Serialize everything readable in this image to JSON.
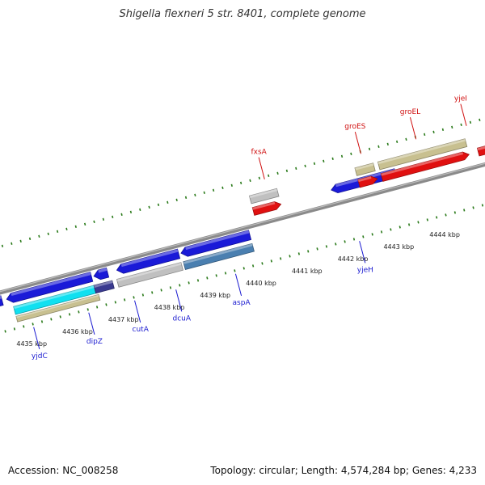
{
  "title": "Shigella flexneri 5 str. 8401, complete genome",
  "footer": {
    "accession": "Accession: NC_008258",
    "summary": "Topology: circular; Length: 4,574,284 bp; Genes: 4,233"
  },
  "colors": {
    "backbone": "#8a8a8a",
    "ticks": "#2a7a1a",
    "gene_blue": "#1a1ad8",
    "gene_red": "#e01010",
    "gene_grey": "#c0c0c0",
    "gene_khaki": "#c8c090",
    "gene_steel": "#4a7fb0",
    "gene_cyan": "#10e0f0",
    "gene_navy": "#3a3a90",
    "gene_lightblue": "#50a0e0",
    "label_blue": "#1a1ad0",
    "label_red": "#d01010"
  },
  "scale": {
    "unit": "kbp",
    "ticks": [
      {
        "kbp": 4435,
        "label": "4435 kbp"
      },
      {
        "kbp": 4436,
        "label": "4436 kbp"
      },
      {
        "kbp": 4437,
        "label": "4437 kbp"
      },
      {
        "kbp": 4438,
        "label": "4438 kbp"
      },
      {
        "kbp": 4439,
        "label": "4439 kbp"
      },
      {
        "kbp": 4440,
        "label": "4440 kbp"
      },
      {
        "kbp": 4441,
        "label": "4441 kbp"
      },
      {
        "kbp": 4442,
        "label": "4442 kbp"
      },
      {
        "kbp": 4443,
        "label": "4443 kbp"
      },
      {
        "kbp": 4444,
        "label": "4444 kbp"
      }
    ]
  },
  "genes": [
    {
      "start": 4434.25,
      "end": 4434.35,
      "strand": "forward",
      "row": 1,
      "color": "gene_lightblue"
    },
    {
      "start": 4434.45,
      "end": 4435.0,
      "strand": "reverse",
      "row": 1,
      "color": "gene_blue"
    },
    {
      "start": 4435.1,
      "end": 4436.95,
      "strand": "reverse",
      "row": 1,
      "color": "gene_blue"
    },
    {
      "start": 4437.0,
      "end": 4437.3,
      "strand": "reverse",
      "row": 1,
      "color": "gene_blue"
    },
    {
      "start": 4437.5,
      "end": 4438.85,
      "strand": "reverse",
      "row": 1,
      "color": "gene_blue"
    },
    {
      "start": 4438.9,
      "end": 4440.4,
      "strand": "reverse",
      "row": 1,
      "color": "gene_blue"
    },
    {
      "start": 4442.3,
      "end": 4443.7,
      "strand": "reverse",
      "row": 0,
      "color": "gene_blue"
    },
    {
      "start": 4440.6,
      "end": 4441.2,
      "strand": "forward",
      "row": -1,
      "color": "gene_red"
    },
    {
      "start": 4442.9,
      "end": 4443.3,
      "strand": "forward",
      "row": -1,
      "color": "gene_red"
    },
    {
      "start": 4443.4,
      "end": 4445.3,
      "strand": "forward",
      "row": -1,
      "color": "gene_red"
    },
    {
      "start": 4445.5,
      "end": 4446.0,
      "strand": "forward",
      "row": -1,
      "color": "gene_red"
    },
    {
      "start": 4435.2,
      "end": 4436.95,
      "strand": "none",
      "row": 2,
      "color": "gene_cyan"
    },
    {
      "start": 4436.95,
      "end": 4437.35,
      "strand": "none",
      "row": 2,
      "color": "gene_navy"
    },
    {
      "start": 4435.2,
      "end": 4437.0,
      "strand": "none",
      "row": 3,
      "color": "gene_khaki"
    },
    {
      "start": 4437.45,
      "end": 4438.85,
      "strand": "none",
      "row": 2,
      "color": "gene_grey"
    },
    {
      "start": 4438.9,
      "end": 4440.4,
      "strand": "none",
      "row": 2,
      "color": "gene_steel"
    },
    {
      "start": 4440.6,
      "end": 4441.2,
      "strand": "none",
      "row": -2,
      "color": "gene_grey"
    },
    {
      "start": 4442.9,
      "end": 4443.3,
      "strand": "none",
      "row": -2,
      "color": "gene_khaki"
    },
    {
      "start": 4443.4,
      "end": 4445.3,
      "strand": "none",
      "row": -2,
      "color": "gene_khaki"
    }
  ],
  "gene_labels": [
    {
      "name": "yjdC",
      "kbp": 4435.5,
      "side": "below",
      "color": "label_blue"
    },
    {
      "name": "dipZ",
      "kbp": 4436.7,
      "side": "below",
      "color": "label_blue"
    },
    {
      "name": "cutA",
      "kbp": 4437.7,
      "side": "below",
      "color": "label_blue"
    },
    {
      "name": "dcuA",
      "kbp": 4438.6,
      "side": "below",
      "color": "label_blue"
    },
    {
      "name": "aspA",
      "kbp": 4439.9,
      "side": "below",
      "color": "label_blue"
    },
    {
      "name": "yjeH",
      "kbp": 4442.6,
      "side": "below",
      "color": "label_blue"
    },
    {
      "name": "fxsA",
      "kbp": 4441.0,
      "side": "above",
      "color": "label_red"
    },
    {
      "name": "groES",
      "kbp": 4443.1,
      "side": "above",
      "color": "label_red"
    },
    {
      "name": "groEL",
      "kbp": 4444.3,
      "side": "above",
      "color": "label_red"
    },
    {
      "name": "yjeI",
      "kbp": 4445.4,
      "side": "above",
      "color": "label_red"
    }
  ]
}
